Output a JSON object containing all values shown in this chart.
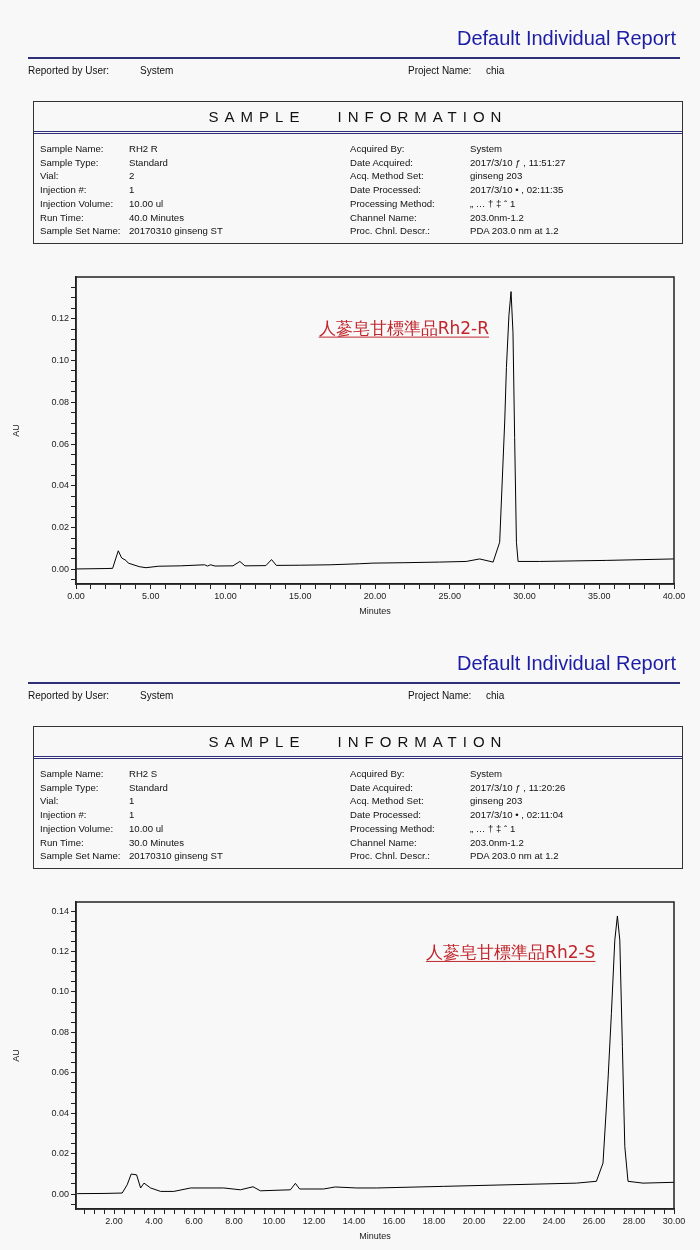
{
  "chart_data": [
    {
      "type": "other",
      "title": "Default Individual Report",
      "subtitle": "SAMPLE INFORMATION",
      "annotations": [
        "Reported by User:",
        "System",
        "Project Name:",
        "chia",
        "Sample Name:",
        "RH2 R",
        "Acquired By:",
        "System",
        "Sample Type:",
        "Standard",
        "Date Acquired:",
        "2017/3/10 ƒ , 11:51:27",
        "Vial:",
        "2",
        "Acq. Method Set:",
        "ginseng 203",
        "Injection #:",
        "1",
        "Date Processed:",
        "2017/3/10 • , 02:11:35",
        "Injection Volume:",
        "10.00 ul",
        "Processing Method:",
        "„ … † ‡ ˆ 1",
        "Run Time:",
        "40.0 Minutes",
        "Channel Name:",
        "203.0nm-1.2",
        "Sample Set Name:",
        "20170310 ginseng ST",
        "Proc. Chnl. Descr.:",
        "PDA 203.0 nm at 1.2"
      ]
    },
    {
      "type": "line",
      "xlabel": "Minutes",
      "ylabel": "AU",
      "color": "#000000",
      "marker": "none",
      "xlim": [
        0,
        40
      ],
      "ylim": [
        -0.007,
        0.14
      ],
      "xticks": [
        {
          "value": 0,
          "label": "0.00"
        },
        {
          "value": 1,
          "label": null
        },
        {
          "value": 2,
          "label": null
        },
        {
          "value": 3,
          "label": null
        },
        {
          "value": 4,
          "label": null
        },
        {
          "value": 5,
          "label": "5.00"
        },
        {
          "value": 6,
          "label": null
        },
        {
          "value": 7,
          "label": null
        },
        {
          "value": 8,
          "label": null
        },
        {
          "value": 9,
          "label": null
        },
        {
          "value": 10,
          "label": "10.00"
        },
        {
          "value": 11,
          "label": null
        },
        {
          "value": 12,
          "label": null
        },
        {
          "value": 13,
          "label": null
        },
        {
          "value": 14,
          "label": null
        },
        {
          "value": 15,
          "label": "15.00"
        },
        {
          "value": 16,
          "label": null
        },
        {
          "value": 17,
          "label": null
        },
        {
          "value": 18,
          "label": null
        },
        {
          "value": 19,
          "label": null
        },
        {
          "value": 20,
          "label": "20.00"
        },
        {
          "value": 21,
          "label": null
        },
        {
          "value": 22,
          "label": null
        },
        {
          "value": 23,
          "label": null
        },
        {
          "value": 24,
          "label": null
        },
        {
          "value": 25,
          "label": "25.00"
        },
        {
          "value": 26,
          "label": null
        },
        {
          "value": 27,
          "label": null
        },
        {
          "value": 28,
          "label": null
        },
        {
          "value": 29,
          "label": null
        },
        {
          "value": 30,
          "label": "30.00"
        },
        {
          "value": 31,
          "label": null
        },
        {
          "value": 32,
          "label": null
        },
        {
          "value": 33,
          "label": null
        },
        {
          "value": 34,
          "label": null
        },
        {
          "value": 35,
          "label": "35.00"
        },
        {
          "value": 36,
          "label": null
        },
        {
          "value": 37,
          "label": null
        },
        {
          "value": 38,
          "label": null
        },
        {
          "value": 39,
          "label": null
        },
        {
          "value": 40,
          "label": "40.00"
        }
      ],
      "yticks": [
        {
          "value": -0.005,
          "label": null
        },
        {
          "value": 0,
          "label": "0.00"
        },
        {
          "value": 0.005,
          "label": null
        },
        {
          "value": 0.01,
          "label": null
        },
        {
          "value": 0.015,
          "label": null
        },
        {
          "value": 0.02,
          "label": "0.02"
        },
        {
          "value": 0.025,
          "label": null
        },
        {
          "value": 0.03,
          "label": null
        },
        {
          "value": 0.035,
          "label": null
        },
        {
          "value": 0.04,
          "label": "0.04"
        },
        {
          "value": 0.045,
          "label": null
        },
        {
          "value": 0.05,
          "label": null
        },
        {
          "value": 0.055,
          "label": null
        },
        {
          "value": 0.06,
          "label": "0.06"
        },
        {
          "value": 0.065,
          "label": null
        },
        {
          "value": 0.07,
          "label": null
        },
        {
          "value": 0.075,
          "label": null
        },
        {
          "value": 0.08,
          "label": "0.08"
        },
        {
          "value": 0.085,
          "label": null
        },
        {
          "value": 0.09,
          "label": null
        },
        {
          "value": 0.095,
          "label": null
        },
        {
          "value": 0.1,
          "label": "0.10"
        },
        {
          "value": 0.105,
          "label": null
        },
        {
          "value": 0.11,
          "label": null
        },
        {
          "value": 0.115,
          "label": null
        },
        {
          "value": 0.12,
          "label": "0.12"
        },
        {
          "value": 0.125,
          "label": null
        },
        {
          "value": 0.13,
          "label": null
        },
        {
          "value": 0.135,
          "label": null
        }
      ],
      "x": [
        0,
        1.0,
        2.0,
        2.45,
        2.65,
        2.83,
        3.05,
        3.34,
        3.5,
        4.23,
        4.68,
        5.5,
        7.0,
        8.6,
        8.8,
        9.0,
        9.3,
        10.5,
        10.96,
        11.3,
        12.7,
        13.08,
        13.4,
        15.0,
        17.0,
        18.98,
        19.87,
        22.0,
        24.33,
        26.1,
        27.0,
        27.9,
        28.34,
        28.68,
        28.79,
        28.96,
        29.1,
        29.23,
        29.34,
        29.46,
        29.57,
        31.02,
        35.47,
        40.0
      ],
      "values": [
        0.0002,
        0.0003,
        0.0004,
        0.0005,
        0.005,
        0.0089,
        0.0055,
        0.0043,
        0.003,
        0.0013,
        0.0008,
        0.0015,
        0.0017,
        0.0022,
        0.0016,
        0.0022,
        0.0016,
        0.0017,
        0.0038,
        0.0017,
        0.0018,
        0.0047,
        0.0019,
        0.002,
        0.0022,
        0.0027,
        0.003,
        0.0032,
        0.0035,
        0.0038,
        0.005,
        0.0035,
        0.013,
        0.0715,
        0.0966,
        0.1217,
        0.133,
        0.1133,
        0.0632,
        0.013,
        0.0038,
        0.0038,
        0.0043,
        0.005
      ],
      "annotations": [
        {
          "text": "人蔘皂甘標準品Rh2-R",
          "x": 29.1,
          "y": 0.133
        }
      ]
    },
    {
      "type": "other",
      "title": "Default Individual Report",
      "subtitle": "SAMPLE INFORMATION",
      "annotations": [
        "Reported by User:",
        "System",
        "Project Name:",
        "chia",
        "Sample Name:",
        "RH2 S",
        "Acquired By:",
        "System",
        "Sample Type:",
        "Standard",
        "Date Acquired:",
        "2017/3/10 ƒ , 11:20:26",
        "Vial:",
        "1",
        "Acq. Method Set:",
        "ginseng 203",
        "Injection #:",
        "1",
        "Date Processed:",
        "2017/3/10 • , 02:11:04",
        "Injection Volume:",
        "10.00 ul",
        "Processing Method:",
        "„ … † ‡ ˆ 1",
        "Run Time:",
        "30.0 Minutes",
        "Channel Name:",
        "203.0nm-1.2",
        "Sample Set Name:",
        "20170310 ginseng ST",
        "Proc. Chnl. Descr.:",
        "PDA 203.0 nm at 1.2"
      ]
    },
    {
      "type": "line",
      "xlabel": "Minutes",
      "ylabel": "AU",
      "color": "#000000",
      "marker": "none",
      "xlim": [
        0.1,
        30
      ],
      "ylim": [
        -0.0074,
        0.1445
      ],
      "xticks": [
        {
          "value": 0.5,
          "label": null
        },
        {
          "value": 1,
          "label": null
        },
        {
          "value": 1.5,
          "label": null
        },
        {
          "value": 2,
          "label": "2.00"
        },
        {
          "value": 2.5,
          "label": null
        },
        {
          "value": 3,
          "label": null
        },
        {
          "value": 3.5,
          "label": null
        },
        {
          "value": 4,
          "label": "4.00"
        },
        {
          "value": 4.5,
          "label": null
        },
        {
          "value": 5,
          "label": null
        },
        {
          "value": 5.5,
          "label": null
        },
        {
          "value": 6,
          "label": "6.00"
        },
        {
          "value": 6.5,
          "label": null
        },
        {
          "value": 7,
          "label": null
        },
        {
          "value": 7.5,
          "label": null
        },
        {
          "value": 8,
          "label": "8.00"
        },
        {
          "value": 8.5,
          "label": null
        },
        {
          "value": 9,
          "label": null
        },
        {
          "value": 9.5,
          "label": null
        },
        {
          "value": 10,
          "label": "10.00"
        },
        {
          "value": 10.5,
          "label": null
        },
        {
          "value": 11,
          "label": null
        },
        {
          "value": 11.5,
          "label": null
        },
        {
          "value": 12,
          "label": "12.00"
        },
        {
          "value": 12.5,
          "label": null
        },
        {
          "value": 13,
          "label": null
        },
        {
          "value": 13.5,
          "label": null
        },
        {
          "value": 14,
          "label": "14.00"
        },
        {
          "value": 14.5,
          "label": null
        },
        {
          "value": 15,
          "label": null
        },
        {
          "value": 15.5,
          "label": null
        },
        {
          "value": 16,
          "label": "16.00"
        },
        {
          "value": 16.5,
          "label": null
        },
        {
          "value": 17,
          "label": null
        },
        {
          "value": 17.5,
          "label": null
        },
        {
          "value": 18,
          "label": "18.00"
        },
        {
          "value": 18.5,
          "label": null
        },
        {
          "value": 19,
          "label": null
        },
        {
          "value": 19.5,
          "label": null
        },
        {
          "value": 20,
          "label": "20.00"
        },
        {
          "value": 20.5,
          "label": null
        },
        {
          "value": 21,
          "label": null
        },
        {
          "value": 21.5,
          "label": null
        },
        {
          "value": 22,
          "label": "22.00"
        },
        {
          "value": 22.5,
          "label": null
        },
        {
          "value": 23,
          "label": null
        },
        {
          "value": 23.5,
          "label": null
        },
        {
          "value": 24,
          "label": "24.00"
        },
        {
          "value": 24.5,
          "label": null
        },
        {
          "value": 25,
          "label": null
        },
        {
          "value": 25.5,
          "label": null
        },
        {
          "value": 26,
          "label": "26.00"
        },
        {
          "value": 26.5,
          "label": null
        },
        {
          "value": 27,
          "label": null
        },
        {
          "value": 27.5,
          "label": null
        },
        {
          "value": 28,
          "label": "28.00"
        },
        {
          "value": 28.5,
          "label": null
        },
        {
          "value": 29,
          "label": null
        },
        {
          "value": 29.5,
          "label": null
        },
        {
          "value": 30,
          "label": "30.00"
        }
      ],
      "yticks": [
        {
          "value": -0.005,
          "label": null
        },
        {
          "value": 0,
          "label": "0.00"
        },
        {
          "value": 0.005,
          "label": null
        },
        {
          "value": 0.01,
          "label": null
        },
        {
          "value": 0.015,
          "label": null
        },
        {
          "value": 0.02,
          "label": "0.02"
        },
        {
          "value": 0.025,
          "label": null
        },
        {
          "value": 0.03,
          "label": null
        },
        {
          "value": 0.035,
          "label": null
        },
        {
          "value": 0.04,
          "label": "0.04"
        },
        {
          "value": 0.045,
          "label": null
        },
        {
          "value": 0.05,
          "label": null
        },
        {
          "value": 0.055,
          "label": null
        },
        {
          "value": 0.06,
          "label": "0.06"
        },
        {
          "value": 0.065,
          "label": null
        },
        {
          "value": 0.07,
          "label": null
        },
        {
          "value": 0.075,
          "label": null
        },
        {
          "value": 0.08,
          "label": "0.08"
        },
        {
          "value": 0.085,
          "label": null
        },
        {
          "value": 0.09,
          "label": null
        },
        {
          "value": 0.095,
          "label": null
        },
        {
          "value": 0.1,
          "label": "0.10"
        },
        {
          "value": 0.105,
          "label": null
        },
        {
          "value": 0.11,
          "label": null
        },
        {
          "value": 0.115,
          "label": null
        },
        {
          "value": 0.12,
          "label": "0.12"
        },
        {
          "value": 0.125,
          "label": null
        },
        {
          "value": 0.13,
          "label": null
        },
        {
          "value": 0.135,
          "label": null
        },
        {
          "value": 0.14,
          "label": "0.14"
        }
      ],
      "x": [
        0.17,
        1.5,
        2.41,
        2.66,
        2.86,
        3.13,
        3.33,
        3.5,
        3.83,
        4.33,
        4.99,
        5.83,
        7.49,
        8.32,
        8.95,
        9.32,
        10.82,
        11.07,
        11.28,
        12.48,
        13.06,
        14.14,
        15.14,
        18.47,
        21.8,
        25.12,
        26.12,
        26.45,
        26.7,
        26.87,
        27.04,
        27.17,
        27.29,
        27.42,
        27.54,
        27.7,
        28.45,
        30.0
      ],
      "values": [
        0.0002,
        0.0003,
        0.0005,
        0.0046,
        0.0099,
        0.0095,
        0.003,
        0.0054,
        0.003,
        0.0013,
        0.0013,
        0.003,
        0.003,
        0.0021,
        0.0036,
        0.0016,
        0.0021,
        0.0053,
        0.0025,
        0.0025,
        0.0035,
        0.003,
        0.003,
        0.0038,
        0.0046,
        0.0054,
        0.0063,
        0.0153,
        0.0565,
        0.0894,
        0.1256,
        0.1376,
        0.1256,
        0.0729,
        0.0235,
        0.0063,
        0.0054,
        0.0058
      ],
      "annotations": [
        {
          "text": "人蔘皂甘標準品Rh2-S",
          "x": 27.17,
          "y": 0.1376
        }
      ]
    }
  ]
}
